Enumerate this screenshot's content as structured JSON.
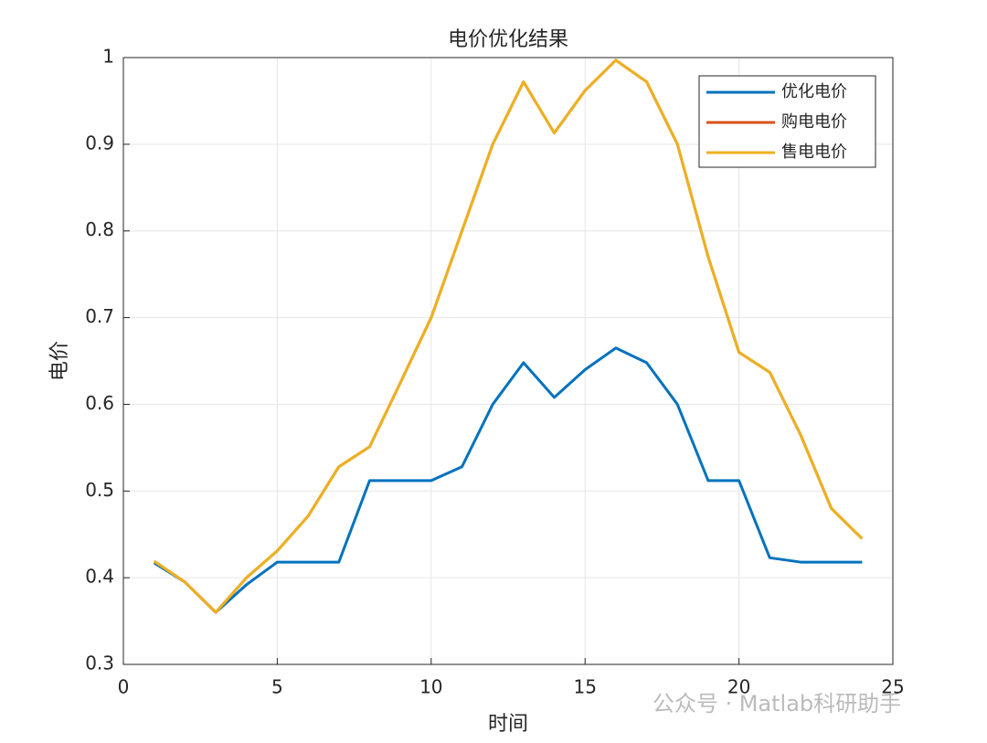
{
  "chart_data": {
    "type": "line",
    "title": "电价优化结果",
    "x_label": "时间",
    "y_label": "电价",
    "x": [
      1,
      2,
      3,
      4,
      5,
      6,
      7,
      8,
      9,
      10,
      11,
      12,
      13,
      14,
      15,
      16,
      17,
      18,
      19,
      20,
      21,
      22,
      23,
      24
    ],
    "series": [
      {
        "name": "优化电价",
        "color": "#0072bd",
        "values": [
          0.417,
          0.395,
          0.36,
          0.392,
          0.418,
          0.418,
          0.418,
          0.512,
          0.512,
          0.512,
          0.528,
          0.6,
          0.648,
          0.608,
          0.64,
          0.665,
          0.648,
          0.6,
          0.512,
          0.512,
          0.423,
          0.418,
          0.418,
          0.418
        ]
      },
      {
        "name": "购电电价",
        "color": "#d95319",
        "values": [
          0.419,
          0.395,
          0.36,
          0.4,
          0.431,
          0.471,
          0.528,
          0.551,
          0.625,
          0.7,
          0.8,
          0.9,
          0.972,
          0.913,
          0.962,
          0.997,
          0.972,
          0.9,
          0.77,
          0.66,
          0.637,
          0.565,
          0.48,
          0.445
        ]
      },
      {
        "name": "售电电价",
        "color": "#edb120",
        "values": [
          0.419,
          0.395,
          0.36,
          0.4,
          0.431,
          0.471,
          0.528,
          0.551,
          0.625,
          0.7,
          0.8,
          0.9,
          0.972,
          0.913,
          0.962,
          0.997,
          0.972,
          0.9,
          0.77,
          0.66,
          0.637,
          0.565,
          0.48,
          0.445
        ]
      }
    ],
    "xlim": [
      0,
      25
    ],
    "xticks": [
      0,
      5,
      10,
      15,
      20,
      25
    ],
    "ylim": [
      0.3,
      1
    ],
    "yticks": [
      0.3,
      0.4,
      0.5,
      0.6,
      0.7,
      0.8,
      0.9,
      1
    ],
    "grid": true,
    "legend_position": "northeast",
    "watermark": "公众号 · Matlab科研助手"
  }
}
